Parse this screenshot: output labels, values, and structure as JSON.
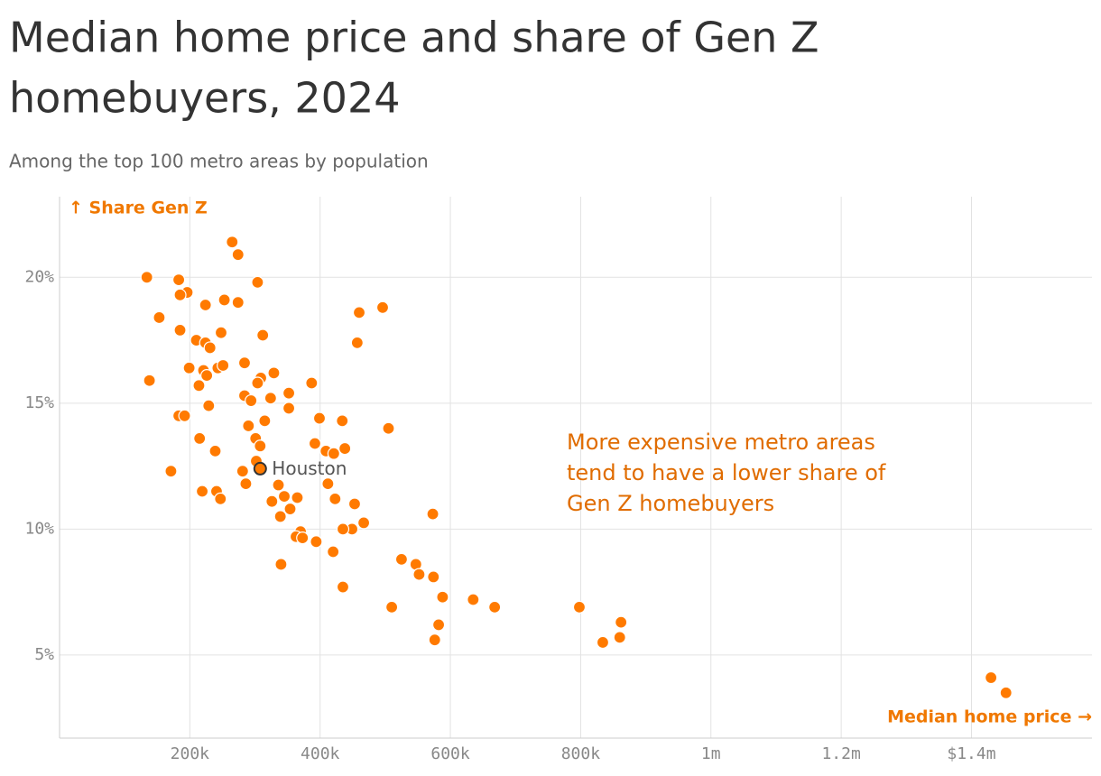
{
  "chart_data": {
    "type": "scatter",
    "title": [
      "Median home price and share of Gen Z",
      "homebuyers, 2024"
    ],
    "subtitle": "Among the top 100 metro areas by population",
    "y_label": "↑ Share Gen Z",
    "x_label": "Median home price →",
    "annotation": [
      "More expensive metro areas",
      "tend to have a lower share of",
      "Gen Z homebuyers"
    ],
    "color": "#ff7a00",
    "xlim": [
      0,
      1585000
    ],
    "ylim": [
      1.7,
      23.2
    ],
    "xticks": [
      {
        "value": 200000,
        "label": "200k"
      },
      {
        "value": 400000,
        "label": "400k"
      },
      {
        "value": 600000,
        "label": "600k"
      },
      {
        "value": 800000,
        "label": "800k"
      },
      {
        "value": 1000000,
        "label": "1m"
      },
      {
        "value": 1200000,
        "label": "1.2m"
      },
      {
        "value": 1400000,
        "label": "$1.4m"
      }
    ],
    "yticks": [
      {
        "value": 5,
        "label": "5%"
      },
      {
        "value": 10,
        "label": "10%"
      },
      {
        "value": 15,
        "label": "15%"
      },
      {
        "value": 20,
        "label": "20%"
      }
    ],
    "grid": true,
    "x": [
      134000,
      183000,
      265000,
      274000,
      304000,
      196000,
      185000,
      224000,
      253000,
      274000,
      153000,
      185000,
      248000,
      312000,
      210000,
      224000,
      231000,
      460000,
      496000,
      457000,
      138000,
      199000,
      221000,
      226000,
      243000,
      251000,
      284000,
      329000,
      309000,
      304000,
      214000,
      387000,
      284000,
      294000,
      324000,
      352000,
      352000,
      229000,
      183000,
      192000,
      290000,
      315000,
      399000,
      434000,
      505000,
      215000,
      301000,
      308000,
      392000,
      409000,
      421000,
      438000,
      239000,
      171000,
      302000,
      308000,
      281000,
      286000,
      336000,
      412000,
      219000,
      241000,
      247000,
      326000,
      345000,
      365000,
      423000,
      453000,
      354000,
      339000,
      573000,
      467000,
      449000,
      435000,
      370000,
      363000,
      373000,
      394000,
      420000,
      340000,
      525000,
      547000,
      552000,
      574000,
      435000,
      588000,
      635000,
      510000,
      668000,
      798000,
      862000,
      582000,
      860000,
      834000,
      576000,
      1430000,
      1453000
    ],
    "values": [
      20.0,
      19.9,
      21.4,
      20.9,
      19.8,
      19.4,
      19.3,
      18.9,
      19.1,
      19.0,
      18.4,
      17.9,
      17.8,
      17.7,
      17.5,
      17.4,
      17.2,
      18.6,
      18.8,
      17.4,
      15.9,
      16.4,
      16.3,
      16.1,
      16.4,
      16.5,
      16.6,
      16.2,
      16.0,
      15.8,
      15.7,
      15.8,
      15.3,
      15.1,
      15.2,
      15.4,
      14.8,
      14.9,
      14.5,
      14.5,
      14.1,
      14.3,
      14.4,
      14.3,
      14.0,
      13.6,
      13.6,
      13.3,
      13.4,
      13.1,
      13.0,
      13.2,
      13.1,
      12.3,
      12.7,
      12.4,
      12.3,
      11.8,
      11.75,
      11.8,
      11.5,
      11.5,
      11.2,
      11.1,
      11.3,
      11.25,
      11.2,
      11.0,
      10.8,
      10.5,
      10.6,
      10.25,
      10.0,
      10.0,
      9.9,
      9.7,
      9.65,
      9.5,
      9.1,
      8.6,
      8.8,
      8.6,
      8.2,
      8.1,
      7.7,
      7.3,
      7.2,
      6.9,
      6.9,
      6.9,
      6.3,
      6.2,
      5.7,
      5.5,
      5.6,
      4.1,
      3.5
    ],
    "point_labels": [
      null,
      null,
      null,
      null,
      null,
      null,
      null,
      null,
      null,
      null,
      null,
      null,
      null,
      null,
      null,
      null,
      null,
      null,
      null,
      null,
      null,
      null,
      null,
      null,
      null,
      null,
      null,
      null,
      null,
      null,
      null,
      null,
      null,
      null,
      null,
      null,
      null,
      null,
      null,
      null,
      null,
      null,
      null,
      null,
      null,
      null,
      null,
      null,
      null,
      null,
      null,
      null,
      null,
      null,
      null,
      "Houston",
      null,
      null,
      null,
      null,
      null,
      null,
      null,
      null,
      null,
      null,
      null,
      null,
      null,
      null,
      null,
      null,
      null,
      null,
      null,
      null,
      null,
      null,
      null,
      null,
      null,
      null,
      null,
      null,
      null,
      null,
      null,
      null,
      null,
      null,
      null,
      null,
      null,
      null,
      null,
      null,
      null
    ]
  }
}
